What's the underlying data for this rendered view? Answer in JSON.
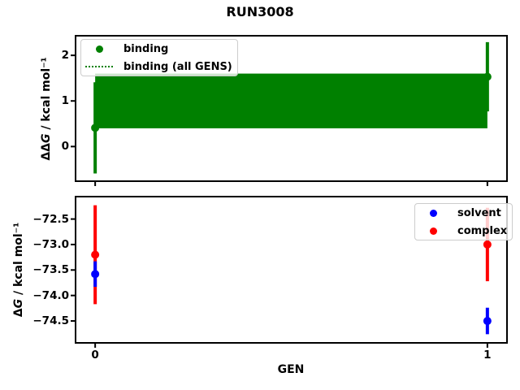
{
  "figure": {
    "title": "RUN3008"
  },
  "chart_data": [
    {
      "id": "top",
      "type": "scatter",
      "title": "RUN3008",
      "ylabel": {
        "prefix": "ΔΔ",
        "italic": "G",
        "suffix": " / kcal mol⁻¹"
      },
      "xlim": [
        -0.05,
        1.05
      ],
      "ylim": [
        -0.76,
        2.43
      ],
      "grid": false,
      "xticks": [
        {
          "value": 0,
          "label": "0",
          "show_label": false
        },
        {
          "value": 1,
          "label": "1",
          "show_label": false
        }
      ],
      "yticks": [
        {
          "value": 0,
          "label": "0"
        },
        {
          "value": 1,
          "label": "1"
        },
        {
          "value": 2,
          "label": "2"
        }
      ],
      "series": [
        {
          "name": "binding",
          "color": "#008000",
          "marker": "circle",
          "x": [
            0,
            1
          ],
          "y": [
            0.41,
            1.53
          ],
          "yerr": [
            1.0,
            0.76
          ]
        },
        {
          "name": "binding (all GENS)",
          "color": "#008000",
          "style": "dotted",
          "mean": 1.0,
          "band_x": [
            0,
            1
          ],
          "band_y": [
            0.4,
            1.6
          ]
        }
      ],
      "legend": {
        "location": "upper left",
        "entries": [
          {
            "label": "binding",
            "marker": "dot",
            "color": "#008000"
          },
          {
            "label": "binding (all GENS)",
            "marker": "dotted-line",
            "color": "#008000"
          }
        ]
      }
    },
    {
      "id": "bottom",
      "type": "scatter",
      "xlabel": "GEN",
      "ylabel": {
        "prefix": "Δ",
        "italic": "G",
        "suffix": " / kcal mol⁻¹"
      },
      "xlim": [
        -0.05,
        1.05
      ],
      "ylim": [
        -74.93,
        -72.06
      ],
      "grid": false,
      "xticks": [
        {
          "value": 0,
          "label": "0"
        },
        {
          "value": 1,
          "label": "1"
        }
      ],
      "yticks": [
        {
          "value": -72.5,
          "label": "−72.5"
        },
        {
          "value": -73.0,
          "label": "−73.0"
        },
        {
          "value": -73.5,
          "label": "−73.5"
        },
        {
          "value": -74.0,
          "label": "−74.0"
        },
        {
          "value": -74.5,
          "label": "−74.5"
        }
      ],
      "series": [
        {
          "name": "solvent",
          "color": "#0000ff",
          "marker": "circle",
          "x": [
            0,
            1
          ],
          "y": [
            -73.58,
            -74.5
          ],
          "yerr": [
            0.25,
            0.26
          ]
        },
        {
          "name": "complex",
          "color": "#ff0000",
          "marker": "circle",
          "x": [
            0,
            1
          ],
          "y": [
            -73.2,
            -73.0
          ],
          "yerr": [
            0.97,
            0.72
          ]
        }
      ],
      "legend": {
        "location": "upper right",
        "entries": [
          {
            "label": "solvent",
            "marker": "dot",
            "color": "#0000ff"
          },
          {
            "label": "complex",
            "marker": "dot",
            "color": "#ff0000"
          }
        ]
      }
    }
  ]
}
